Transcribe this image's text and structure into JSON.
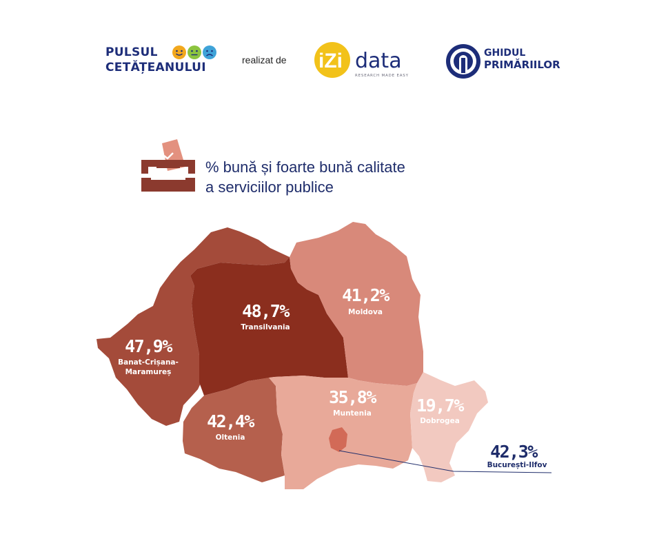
{
  "header": {
    "brand_line1": "PULSUL",
    "brand_line2": "CETĂȚEANULUI",
    "realizat_de": "realizat de",
    "izi_logo": "iZi",
    "data_logo": "data",
    "izi_tagline": "RESEARCH MADE EASY",
    "ghidul_line1": "GHIDUL",
    "ghidul_line2": "PRIMĂRIILOR"
  },
  "title": {
    "line1": "% bună și foarte bună calitate",
    "line2": "a serviciilor publice",
    "icon": "ballot-box-icon"
  },
  "regions": [
    {
      "name": "Transilvania",
      "value": "48,7%",
      "color": "#8b2e1e"
    },
    {
      "name": "Moldova",
      "value": "41,2%",
      "color": "#d8897a"
    },
    {
      "name": "Banat-Crișana-Maramureș",
      "value": "47,9%",
      "color": "#a44b3a"
    },
    {
      "name": "Oltenia",
      "value": "42,4%",
      "color": "#b5604d"
    },
    {
      "name": "Muntenia",
      "value": "35,8%",
      "color": "#e8a999"
    },
    {
      "name": "Dobrogea",
      "value": "19,7%",
      "color": "#f2c9c0"
    },
    {
      "name": "București-Ilfov",
      "value": "42,3%",
      "color": "#d26a57"
    }
  ],
  "colors": {
    "navy": "#1d2d79",
    "faces": [
      "#f2a81d",
      "#8cc43f",
      "#3fa3d8"
    ]
  }
}
